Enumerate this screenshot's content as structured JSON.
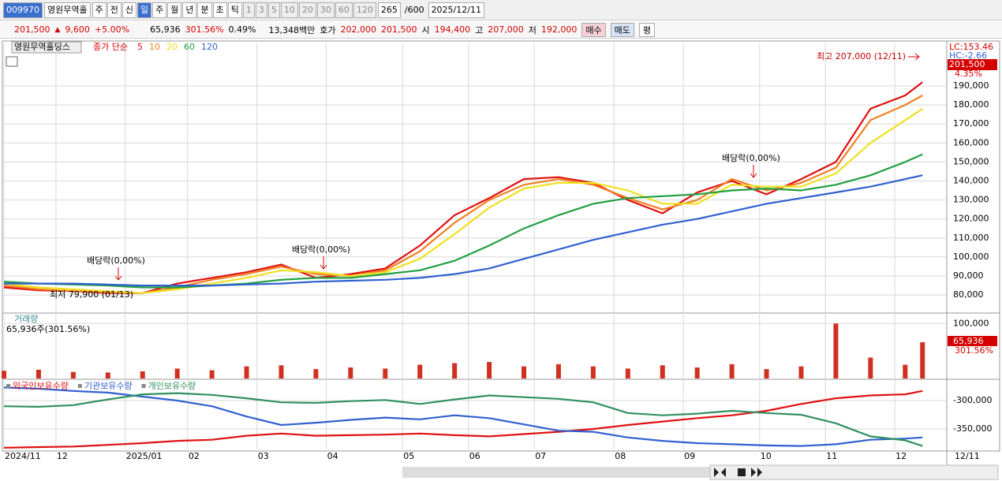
{
  "toolbar": {
    "code": "009970",
    "name": "영원무역홀",
    "items": [
      "주",
      "전",
      "신",
      "일",
      "주",
      "월",
      "년",
      "분",
      "초",
      "틱",
      "1",
      "3",
      "5",
      "10",
      "20",
      "30",
      "60",
      "120"
    ],
    "count": "265",
    "total": "/600",
    "date": "2025/12/11"
  },
  "quote": {
    "price": "201,500",
    "change": "9,600",
    "rate": "+5.00%",
    "volume": "65,936",
    "volume_rate": "301.56%",
    "turnover": "0.49%",
    "amount": "13,348백만",
    "bid_label": "호가",
    "bid": "202,000",
    "ask": "201,500",
    "open_label": "시",
    "open": "194,400",
    "high_label": "고",
    "high": "207,000",
    "low_label": "저",
    "low": "192,000",
    "buy": "매수",
    "sell": "매도",
    "eval": "평"
  },
  "chart_data": [
    {
      "type": "line",
      "title": "영원무역홀딩스",
      "legend_prefix": "종가 단순",
      "x": [
        0,
        10,
        20,
        30,
        40,
        50,
        60,
        70,
        80,
        90,
        100,
        110,
        120,
        130,
        140,
        150,
        160,
        170,
        180,
        190,
        200,
        210,
        220,
        230,
        240,
        250,
        260,
        265
      ],
      "xlim": [
        0,
        272
      ],
      "ylim": [
        70500,
        212400
      ],
      "yticks": [
        {
          "value": 80000,
          "label": "80,000"
        },
        {
          "value": 90000,
          "label": "90,000"
        },
        {
          "value": 100000,
          "label": "100,000"
        },
        {
          "value": 110000,
          "label": "110,000"
        },
        {
          "value": 120000,
          "label": "120,000"
        },
        {
          "value": 130000,
          "label": "130,000"
        },
        {
          "value": 140000,
          "label": "140,000"
        },
        {
          "value": 150000,
          "label": "150,000"
        },
        {
          "value": 160000,
          "label": "160,000"
        },
        {
          "value": 170000,
          "label": "170,000"
        },
        {
          "value": 180000,
          "label": "180,000"
        },
        {
          "value": 190000,
          "label": "190,000"
        }
      ],
      "series": [
        {
          "name": "5",
          "color": "#e01010",
          "values": [
            84000,
            82500,
            82000,
            81000,
            81000,
            86000,
            89000,
            92000,
            96000,
            89000,
            91000,
            94000,
            106000,
            122000,
            131000,
            141000,
            142000,
            139000,
            130000,
            123000,
            134000,
            140000,
            133000,
            141000,
            150000,
            178000,
            185000,
            192000
          ]
        },
        {
          "name": "10",
          "color": "#f08020",
          "values": [
            85000,
            83000,
            82000,
            81500,
            81000,
            84000,
            88000,
            91000,
            95000,
            91000,
            90000,
            93000,
            103000,
            118000,
            130000,
            138000,
            141000,
            138000,
            131000,
            125000,
            130000,
            141000,
            135000,
            139000,
            147000,
            172000,
            180000,
            185000
          ]
        },
        {
          "name": "20",
          "color": "#f0e020",
          "values": [
            86000,
            84000,
            83000,
            82000,
            81000,
            83000,
            86000,
            89000,
            93000,
            92000,
            90000,
            92000,
            99000,
            112000,
            126000,
            136000,
            139000,
            139000,
            135000,
            128000,
            128000,
            138000,
            137000,
            137000,
            144000,
            160000,
            172000,
            178000
          ]
        },
        {
          "name": "60",
          "color": "#20a040",
          "values": [
            87000,
            86000,
            85500,
            85000,
            84000,
            84000,
            85000,
            86000,
            88000,
            89000,
            89000,
            91000,
            93000,
            98000,
            106000,
            115000,
            122000,
            128000,
            131000,
            132000,
            133000,
            135000,
            136000,
            135000,
            138000,
            143000,
            150000,
            154000
          ]
        },
        {
          "name": "120",
          "color": "#3060d0",
          "values": [
            86000,
            86000,
            86000,
            85500,
            85000,
            85000,
            85000,
            85500,
            86000,
            87000,
            87500,
            88000,
            89000,
            91000,
            94000,
            99000,
            104000,
            109000,
            113000,
            117000,
            120000,
            124000,
            128000,
            131000,
            134000,
            137000,
            141000,
            143000
          ]
        }
      ],
      "annotations": [
        "배당락(0,00%)",
        "배당락(0,00%)",
        "배당락(0,00%)",
        "최고 207,000 (12/11)",
        "최저 79,900 (01/13)"
      ],
      "side_labels": [
        "LC:153.46",
        "HC:-2.66",
        "201,500",
        "4.35%"
      ]
    },
    {
      "type": "bar",
      "title": "거래량",
      "subtitle": "65,936주(301.56%)",
      "color": "#d03020",
      "x": [
        0,
        10,
        20,
        30,
        40,
        50,
        60,
        70,
        80,
        90,
        100,
        110,
        120,
        130,
        140,
        150,
        160,
        170,
        180,
        190,
        200,
        210,
        220,
        230,
        240,
        250,
        260,
        265
      ],
      "values": [
        14000,
        16000,
        12000,
        11000,
        13000,
        18000,
        15000,
        22000,
        24000,
        17000,
        20000,
        18000,
        25000,
        28000,
        30000,
        22000,
        26000,
        22000,
        18000,
        24000,
        20000,
        26000,
        17000,
        22000,
        100000,
        38000,
        25000,
        65936
      ],
      "xlim": [
        0,
        272
      ],
      "ylim": [
        0,
        119000
      ],
      "yticks": [
        {
          "value": 100000,
          "label": "100,000"
        }
      ],
      "current_label": "65,936",
      "current_rate": "301.56%"
    },
    {
      "type": "line",
      "x": [
        0,
        10,
        20,
        30,
        40,
        50,
        60,
        70,
        80,
        90,
        100,
        110,
        120,
        130,
        140,
        150,
        160,
        170,
        180,
        190,
        200,
        210,
        220,
        230,
        240,
        250,
        260,
        265
      ],
      "xlim": [
        0,
        272
      ],
      "ylim": [
        -386100,
        -263900
      ],
      "yticks": [
        {
          "value": -300000,
          "label": "-300,000"
        },
        {
          "value": -350000,
          "label": "-350,000"
        }
      ],
      "xticks": [
        {
          "value": 0,
          "label": "2024/11"
        },
        {
          "value": 15,
          "label": "12"
        },
        {
          "value": 35,
          "label": "2025/01"
        },
        {
          "value": 53,
          "label": "02"
        },
        {
          "value": 73,
          "label": "03"
        },
        {
          "value": 93,
          "label": "04"
        },
        {
          "value": 115,
          "label": "05"
        },
        {
          "value": 134,
          "label": "06"
        },
        {
          "value": 153,
          "label": "07"
        },
        {
          "value": 176,
          "label": "08"
        },
        {
          "value": 196,
          "label": "09"
        },
        {
          "value": 218,
          "label": "10"
        },
        {
          "value": 237,
          "label": "11"
        },
        {
          "value": 257,
          "label": "12"
        }
      ],
      "x_end_label": "12/11",
      "series": [
        {
          "name": "외국인보유수량",
          "color": "#e01010",
          "values": [
            -383000,
            -382000,
            -381000,
            -378000,
            -375000,
            -371000,
            -369000,
            -362000,
            -358000,
            -362000,
            -361000,
            -360000,
            -358000,
            -361000,
            -363000,
            -359000,
            -355000,
            -350000,
            -343000,
            -337000,
            -331000,
            -326000,
            -318000,
            -306000,
            -296000,
            -291000,
            -289000,
            -283000
          ]
        },
        {
          "name": "기관보유수량",
          "color": "#3060d0",
          "values": [
            -277000,
            -279000,
            -283000,
            -286000,
            -293000,
            -300000,
            -310000,
            -328000,
            -343000,
            -339000,
            -334000,
            -330000,
            -333000,
            -326000,
            -331000,
            -342000,
            -353000,
            -355000,
            -365000,
            -371000,
            -375000,
            -377000,
            -379000,
            -380000,
            -377000,
            -369000,
            -367000,
            -365000
          ]
        },
        {
          "name": "개인보유수량",
          "color": "#309060",
          "values": [
            -310000,
            -311000,
            -308000,
            -298000,
            -289000,
            -287000,
            -290000,
            -296000,
            -303000,
            -304000,
            -301000,
            -299000,
            -306000,
            -298000,
            -291000,
            -294000,
            -297000,
            -303000,
            -322000,
            -326000,
            -323000,
            -318000,
            -322000,
            -325000,
            -340000,
            -363000,
            -370000,
            -380000
          ]
        }
      ]
    }
  ]
}
